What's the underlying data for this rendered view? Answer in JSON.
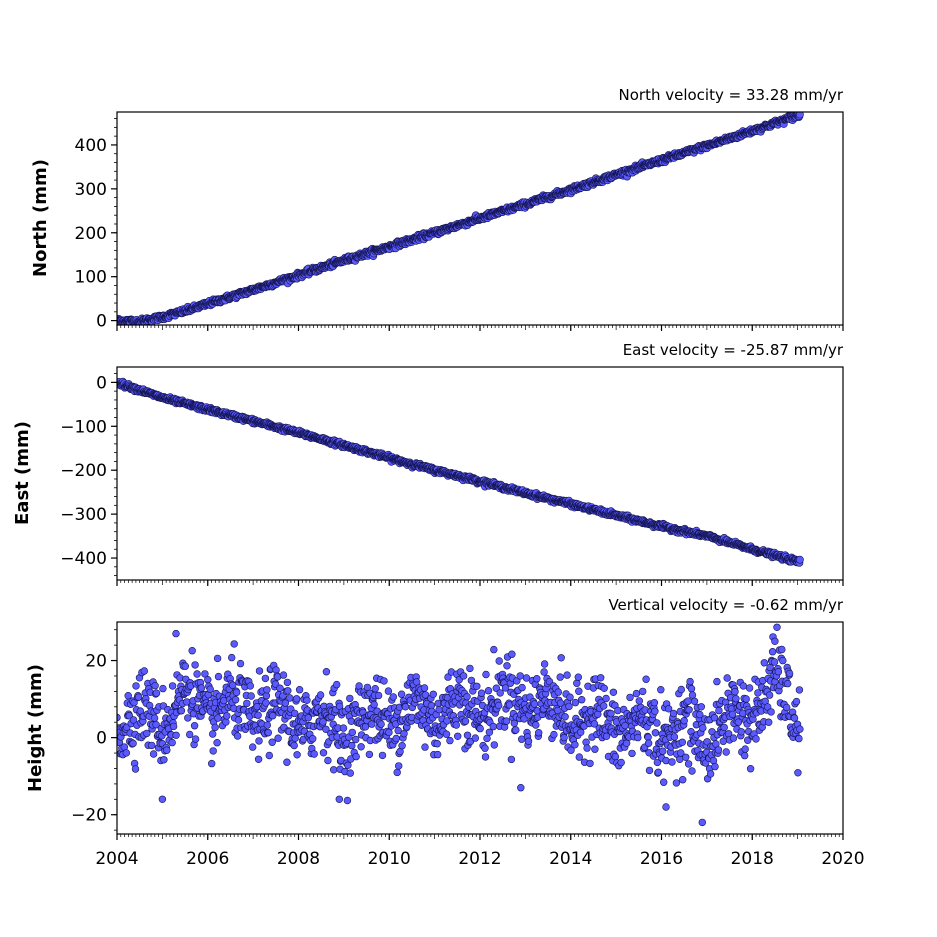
{
  "chart_data": [
    {
      "type": "scatter",
      "title": "North velocity = 33.28 mm/yr",
      "ylabel": "North (mm)",
      "xlim": [
        2004,
        2020
      ],
      "ylim": [
        -10,
        475
      ],
      "yticks": [
        0,
        100,
        200,
        300,
        400
      ],
      "ytick_labels": [
        "0",
        "100",
        "200",
        "300",
        "400"
      ],
      "x_start": 2004.0,
      "x_end": 2019.05,
      "trend": "linear increase from about 0 mm in 2004 to about 470 mm in early 2019",
      "x": [
        2004.0,
        2004.5,
        2005.0,
        2005.5,
        2006.0,
        2007.0,
        2008.0,
        2009.0,
        2010.0,
        2011.0,
        2012.0,
        2013.0,
        2014.0,
        2015.0,
        2016.0,
        2017.0,
        2018.0,
        2019.0
      ],
      "y": [
        0,
        -2,
        8,
        22,
        38,
        70,
        103,
        137,
        168,
        200,
        233,
        265,
        298,
        332,
        365,
        398,
        432,
        467
      ],
      "noise": 3,
      "marker_color": "#5a5aff",
      "edge_color": "#141450"
    },
    {
      "type": "scatter",
      "title": "East velocity = -25.87 mm/yr",
      "ylabel": "East (mm)",
      "xlim": [
        2004,
        2020
      ],
      "ylim": [
        -450,
        35
      ],
      "yticks": [
        0,
        -100,
        -200,
        -300,
        -400
      ],
      "ytick_labels": [
        "0",
        "−100",
        "−200",
        "−300",
        "−400"
      ],
      "x_start": 2004.0,
      "x_end": 2019.05,
      "trend": "linear decrease from about 0 mm in 2004 to about -410 mm in early 2019",
      "x": [
        2004.0,
        2005.0,
        2006.0,
        2007.0,
        2008.0,
        2009.0,
        2010.0,
        2011.0,
        2012.0,
        2013.0,
        2014.0,
        2015.0,
        2016.0,
        2017.0,
        2018.0,
        2019.0
      ],
      "y": [
        0,
        -35,
        -62,
        -88,
        -115,
        -143,
        -172,
        -200,
        -225,
        -252,
        -277,
        -303,
        -328,
        -350,
        -380,
        -408
      ],
      "noise": 2.5,
      "marker_color": "#5a5aff",
      "edge_color": "#141450"
    },
    {
      "type": "scatter",
      "title": "Vertical velocity = -0.62 mm/yr",
      "ylabel": "Height (mm)",
      "xlabel": "",
      "xlim": [
        2004,
        2020
      ],
      "ylim": [
        -25,
        30
      ],
      "yticks": [
        20,
        0,
        -20
      ],
      "ytick_labels": [
        "20",
        "0",
        "−20"
      ],
      "xticks": [
        2004,
        2006,
        2008,
        2010,
        2012,
        2014,
        2016,
        2018,
        2020
      ],
      "xtick_labels": [
        "2004",
        "2006",
        "2008",
        "2010",
        "2012",
        "2014",
        "2016",
        "2018",
        "2020"
      ],
      "x_start": 2004.0,
      "x_end": 2019.05,
      "trend": "seasonal scatter roughly between -15 mm and +25 mm around about +5 mm",
      "x": [
        2004.0,
        2005.0,
        2005.5,
        2006.0,
        2007.0,
        2008.0,
        2009.0,
        2010.0,
        2011.0,
        2012.0,
        2013.0,
        2014.0,
        2015.0,
        2016.0,
        2017.0,
        2018.0,
        2018.5,
        2019.0
      ],
      "y": [
        5,
        5,
        10,
        8,
        7,
        5,
        3,
        6,
        7,
        8,
        10,
        6,
        3,
        2,
        1,
        7,
        14,
        5
      ],
      "noise": 5,
      "outliers": [
        [
          2005.3,
          27
        ],
        [
          2005.0,
          -16
        ],
        [
          2008.9,
          -16
        ],
        [
          2012.9,
          -13
        ],
        [
          2016.1,
          -18
        ],
        [
          2016.9,
          -22
        ],
        [
          2018.5,
          25
        ]
      ],
      "marker_color": "#5a5aff",
      "edge_color": "#141450"
    }
  ]
}
